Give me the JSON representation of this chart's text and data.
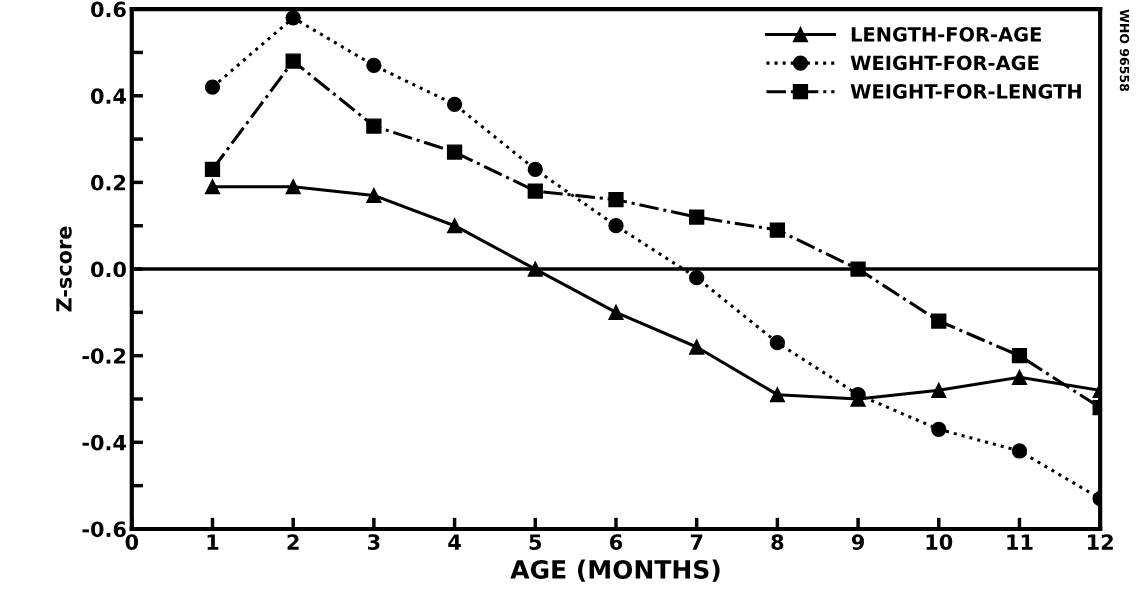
{
  "chart_data": {
    "type": "line",
    "xlabel": "AGE (MONTHS)",
    "ylabel": "Z-score",
    "x": [
      1,
      2,
      3,
      4,
      5,
      6,
      7,
      8,
      9,
      10,
      11,
      12
    ],
    "series": [
      {
        "name": "LENGTH-FOR-AGE",
        "color": "#000000",
        "marker": "triangle",
        "line_style": "solid",
        "values": [
          0.19,
          0.19,
          0.17,
          0.1,
          0.0,
          -0.1,
          -0.18,
          -0.29,
          -0.3,
          -0.28,
          -0.25,
          -0.28
        ]
      },
      {
        "name": "WEIGHT-FOR-AGE",
        "color": "#000000",
        "marker": "circle",
        "line_style": "dotted",
        "values": [
          0.42,
          0.58,
          0.47,
          0.38,
          0.23,
          0.1,
          -0.02,
          -0.17,
          -0.29,
          -0.37,
          -0.42,
          -0.53
        ]
      },
      {
        "name": "WEIGHT-FOR-LENGTH",
        "color": "#000000",
        "marker": "square",
        "line_style": "dashed",
        "values": [
          0.23,
          0.48,
          0.33,
          0.27,
          0.18,
          0.16,
          0.12,
          0.09,
          0.0,
          -0.12,
          -0.2,
          -0.32
        ]
      }
    ],
    "xlim": [
      0,
      12
    ],
    "ylim": [
      -0.6,
      0.6
    ],
    "xticks": [
      0,
      1,
      2,
      3,
      4,
      5,
      6,
      7,
      8,
      9,
      10,
      11,
      12
    ],
    "yticks": [
      -0.6,
      {
        "value": -0.5,
        "label": null
      },
      -0.4,
      {
        "value": -0.3,
        "label": null
      },
      -0.2,
      {
        "value": -0.1,
        "label": null
      },
      {
        "value": 0,
        "label": "0.0"
      },
      {
        "value": 0.1,
        "label": null
      },
      0.2,
      {
        "value": 0.3,
        "label": null
      },
      0.4,
      {
        "value": 0.5,
        "label": null
      },
      0.6
    ],
    "ref_lines": [
      {
        "axis": "y",
        "value": 0,
        "label": null,
        "color": "#000000",
        "line_style": "solid"
      }
    ],
    "annotations": [
      "WHO 96558"
    ],
    "grid": false,
    "legend": "top right"
  }
}
